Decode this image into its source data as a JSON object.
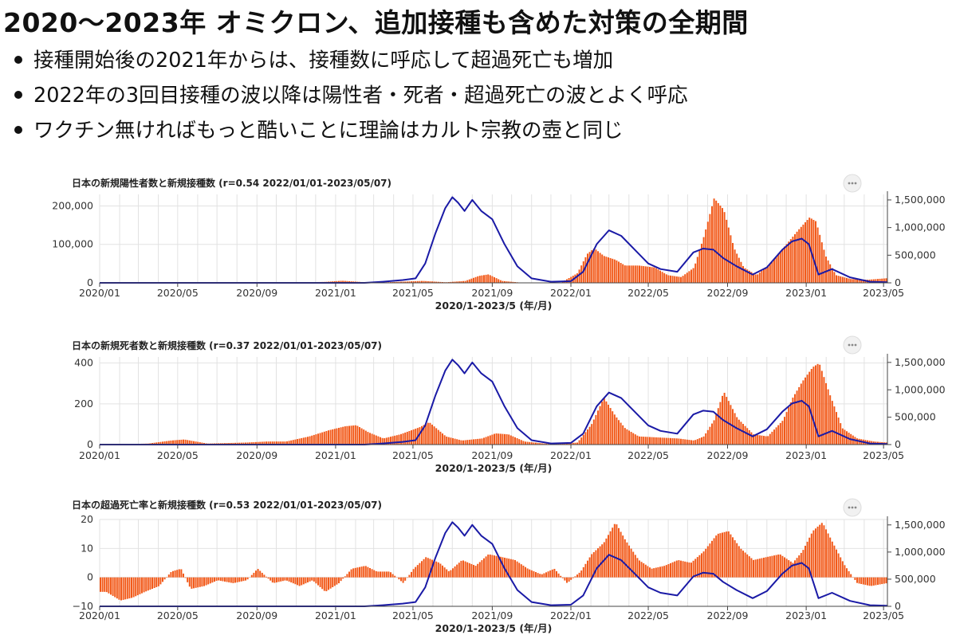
{
  "slide": {
    "title": "2020〜2023年 オミクロン、追加接種も含めた対策の全期間",
    "bullets": [
      "接種開始後の2021年からは、接種数に呼応して超過死亡も増加",
      "2022年の3回目接種の波以降は陽性者・死者・超過死亡の波とよく呼応",
      "ワクチン無ければもっと酷いことに理論はカルト宗教の壺と同じ"
    ]
  },
  "menu_icon": "ellipsis-icon",
  "colors": {
    "bars": "#f25a1a",
    "line": "#1a1aa6",
    "grid": "#e2e2e2",
    "axis": "#444444"
  },
  "chart_data": [
    {
      "type": "bar",
      "title": "日本の新規陽性者数と新規接種数 (r=0.54 2022/01/01-2023/05/07)",
      "xlabel": "2020/1-2023/5 (年/月)",
      "x_ticks": [
        "2020/01",
        "2020/05",
        "2020/09",
        "2021/01",
        "2021/05",
        "2021/09",
        "2022/01",
        "2022/05",
        "2022/09",
        "2023/01",
        "2023/05"
      ],
      "y_left": {
        "ticks": [
          0,
          100000,
          200000
        ],
        "tick_labels": [
          "0",
          "100,000",
          "200,000"
        ],
        "lim": [
          0,
          230000
        ]
      },
      "y_right": {
        "ticks": [
          0,
          500000,
          1000000,
          1500000
        ],
        "tick_labels": [
          "0",
          "500,000",
          "1,000,000",
          "1,500,000"
        ],
        "lim": [
          0,
          1600000
        ]
      },
      "series": [
        {
          "kind": "bar",
          "axis": "left",
          "x": [
            "2020/01/15",
            "2020/03/15",
            "2020/05/15",
            "2020/07/15",
            "2020/08/10",
            "2020/09/15",
            "2020/11/15",
            "2020/12/15",
            "2021/01/10",
            "2021/02/15",
            "2021/03/15",
            "2021/04/20",
            "2021/05/15",
            "2021/06/20",
            "2021/07/20",
            "2021/08/10",
            "2021/08/25",
            "2021/09/15",
            "2021/10/15",
            "2021/11/15",
            "2021/12/15",
            "2022/01/10",
            "2022/01/25",
            "2022/02/05",
            "2022/02/20",
            "2022/03/10",
            "2022/03/25",
            "2022/04/15",
            "2022/05/10",
            "2022/05/30",
            "2022/06/20",
            "2022/07/10",
            "2022/07/25",
            "2022/08/10",
            "2022/08/25",
            "2022/09/10",
            "2022/09/25",
            "2022/10/15",
            "2022/11/05",
            "2022/11/20",
            "2022/12/05",
            "2022/12/20",
            "2023/01/05",
            "2023/01/15",
            "2023/01/30",
            "2023/02/15",
            "2023/03/10",
            "2023/04/05",
            "2023/05/05"
          ],
          "values": [
            0,
            100,
            400,
            800,
            1200,
            600,
            1500,
            2500,
            5500,
            1500,
            1200,
            3500,
            5000,
            1500,
            5000,
            18000,
            22000,
            5000,
            500,
            200,
            300,
            25000,
            75000,
            90000,
            70000,
            60000,
            45000,
            45000,
            40000,
            20000,
            15000,
            40000,
            120000,
            220000,
            190000,
            90000,
            40000,
            20000,
            50000,
            80000,
            110000,
            140000,
            170000,
            160000,
            70000,
            20000,
            10000,
            8000,
            12000
          ]
        },
        {
          "kind": "line",
          "axis": "right",
          "x": [
            "2020/01/01",
            "2021/02/15",
            "2021/03/15",
            "2021/04/15",
            "2021/05/05",
            "2021/05/20",
            "2021/06/05",
            "2021/06/20",
            "2021/07/01",
            "2021/07/10",
            "2021/07/20",
            "2021/08/01",
            "2021/08/15",
            "2021/09/01",
            "2021/09/20",
            "2021/10/10",
            "2021/11/01",
            "2021/12/01",
            "2022/01/01",
            "2022/01/20",
            "2022/02/10",
            "2022/03/01",
            "2022/03/20",
            "2022/04/10",
            "2022/05/01",
            "2022/05/20",
            "2022/06/15",
            "2022/07/10",
            "2022/07/25",
            "2022/08/10",
            "2022/08/25",
            "2022/09/15",
            "2022/10/10",
            "2022/11/01",
            "2022/11/25",
            "2022/12/10",
            "2022/12/25",
            "2023/01/05",
            "2023/01/20",
            "2023/02/10",
            "2023/03/10",
            "2023/04/10",
            "2023/05/07"
          ],
          "values": [
            0,
            0,
            20000,
            50000,
            80000,
            350000,
            900000,
            1350000,
            1550000,
            1450000,
            1300000,
            1500000,
            1300000,
            1150000,
            700000,
            300000,
            80000,
            20000,
            30000,
            200000,
            700000,
            950000,
            850000,
            600000,
            350000,
            250000,
            200000,
            550000,
            620000,
            600000,
            450000,
            300000,
            150000,
            280000,
            600000,
            750000,
            800000,
            700000,
            150000,
            250000,
            100000,
            20000,
            10000
          ]
        }
      ]
    },
    {
      "type": "bar",
      "title": "日本の新規死者数と新規接種数 (r=0.37 2022/01/01-2023/05/07)",
      "xlabel": "2020/1-2023/5 (年/月)",
      "x_ticks": [
        "2020/01",
        "2020/05",
        "2020/09",
        "2021/01",
        "2021/05",
        "2021/09",
        "2022/01",
        "2022/05",
        "2022/09",
        "2023/01",
        "2023/05"
      ],
      "y_left": {
        "ticks": [
          0,
          200,
          400
        ],
        "tick_labels": [
          "0",
          "200",
          "400"
        ],
        "lim": [
          0,
          430
        ]
      },
      "y_right": {
        "ticks": [
          0,
          500000,
          1000000,
          1500000
        ],
        "tick_labels": [
          "0",
          "500,000",
          "1,000,000",
          "1,500,000"
        ],
        "lim": [
          0,
          1600000
        ]
      },
      "series": [
        {
          "kind": "bar",
          "axis": "left",
          "x": [
            "2020/01/15",
            "2020/03/15",
            "2020/04/20",
            "2020/05/10",
            "2020/06/15",
            "2020/08/15",
            "2020/09/15",
            "2020/10/15",
            "2020/11/20",
            "2020/12/20",
            "2021/01/15",
            "2021/02/01",
            "2021/02/20",
            "2021/03/15",
            "2021/04/10",
            "2021/05/10",
            "2021/05/25",
            "2021/06/20",
            "2021/07/15",
            "2021/08/15",
            "2021/09/05",
            "2021/09/25",
            "2021/10/20",
            "2021/11/20",
            "2021/12/20",
            "2022/01/10",
            "2022/02/01",
            "2022/02/20",
            "2022/03/10",
            "2022/03/25",
            "2022/04/15",
            "2022/05/15",
            "2022/06/15",
            "2022/07/10",
            "2022/07/25",
            "2022/08/10",
            "2022/08/25",
            "2022/09/15",
            "2022/10/10",
            "2022/11/01",
            "2022/11/25",
            "2022/12/10",
            "2022/12/25",
            "2023/01/10",
            "2023/01/20",
            "2023/02/05",
            "2023/02/25",
            "2023/03/20",
            "2023/04/15",
            "2023/05/05"
          ],
          "values": [
            0,
            5,
            20,
            25,
            5,
            10,
            15,
            15,
            40,
            70,
            90,
            95,
            60,
            30,
            50,
            85,
            110,
            40,
            20,
            30,
            55,
            50,
            15,
            5,
            5,
            10,
            100,
            230,
            140,
            80,
            40,
            35,
            30,
            20,
            40,
            120,
            260,
            130,
            50,
            40,
            120,
            230,
            310,
            380,
            400,
            250,
            80,
            30,
            15,
            10
          ]
        },
        {
          "kind": "line",
          "axis": "right",
          "x": [
            "2020/01/01",
            "2021/02/15",
            "2021/03/15",
            "2021/04/15",
            "2021/05/05",
            "2021/05/20",
            "2021/06/05",
            "2021/06/20",
            "2021/07/01",
            "2021/07/10",
            "2021/07/20",
            "2021/08/01",
            "2021/08/15",
            "2021/09/01",
            "2021/09/20",
            "2021/10/10",
            "2021/11/01",
            "2021/12/01",
            "2022/01/01",
            "2022/01/20",
            "2022/02/10",
            "2022/03/01",
            "2022/03/20",
            "2022/04/10",
            "2022/05/01",
            "2022/05/20",
            "2022/06/15",
            "2022/07/10",
            "2022/07/25",
            "2022/08/10",
            "2022/08/25",
            "2022/09/15",
            "2022/10/10",
            "2022/11/01",
            "2022/11/25",
            "2022/12/10",
            "2022/12/25",
            "2023/01/05",
            "2023/01/20",
            "2023/02/10",
            "2023/03/10",
            "2023/04/10",
            "2023/05/07"
          ],
          "values": [
            0,
            0,
            20000,
            50000,
            80000,
            350000,
            900000,
            1350000,
            1550000,
            1450000,
            1300000,
            1500000,
            1300000,
            1150000,
            700000,
            300000,
            80000,
            20000,
            30000,
            200000,
            700000,
            950000,
            850000,
            600000,
            350000,
            250000,
            200000,
            550000,
            620000,
            600000,
            450000,
            300000,
            150000,
            280000,
            600000,
            750000,
            800000,
            700000,
            150000,
            250000,
            100000,
            20000,
            10000
          ]
        }
      ]
    },
    {
      "type": "bar",
      "title": "日本の超過死亡率と新規接種数 (r=0.53 2022/01/01-2023/05/07)",
      "xlabel": "2020/1-2023/5 (年/月)",
      "x_ticks": [
        "2020/01",
        "2020/05",
        "2020/09",
        "2021/01",
        "2021/05",
        "2021/09",
        "2022/01",
        "2022/05",
        "2022/09",
        "2023/01",
        "2023/05"
      ],
      "y_left": {
        "ticks": [
          -10,
          0,
          10,
          20
        ],
        "tick_labels": [
          "−10",
          "0",
          "10",
          "20"
        ],
        "lim": [
          -10,
          20
        ]
      },
      "y_right": {
        "ticks": [
          0,
          500000,
          1000000,
          1500000
        ],
        "tick_labels": [
          "0",
          "500,000",
          "1,000,000",
          "1,500,000"
        ],
        "lim": [
          0,
          1600000
        ]
      },
      "series": [
        {
          "kind": "bar",
          "axis": "left",
          "x": [
            "2020/01/10",
            "2020/02/01",
            "2020/02/20",
            "2020/03/10",
            "2020/04/01",
            "2020/04/20",
            "2020/05/05",
            "2020/05/20",
            "2020/06/10",
            "2020/07/01",
            "2020/07/25",
            "2020/08/15",
            "2020/09/01",
            "2020/09/25",
            "2020/10/15",
            "2020/11/05",
            "2020/11/25",
            "2020/12/15",
            "2021/01/05",
            "2021/01/25",
            "2021/02/15",
            "2021/03/05",
            "2021/03/25",
            "2021/04/15",
            "2021/05/01",
            "2021/05/20",
            "2021/06/10",
            "2021/06/25",
            "2021/07/15",
            "2021/08/05",
            "2021/08/25",
            "2021/09/15",
            "2021/10/05",
            "2021/10/25",
            "2021/11/15",
            "2021/12/05",
            "2021/12/25",
            "2022/01/15",
            "2022/02/01",
            "2022/02/20",
            "2022/03/10",
            "2022/03/25",
            "2022/04/15",
            "2022/05/05",
            "2022/05/25",
            "2022/06/15",
            "2022/07/05",
            "2022/07/25",
            "2022/08/15",
            "2022/09/01",
            "2022/09/20",
            "2022/10/10",
            "2022/10/30",
            "2022/11/20",
            "2022/12/10",
            "2022/12/25",
            "2023/01/10",
            "2023/01/25",
            "2023/02/10",
            "2023/03/01",
            "2023/03/20",
            "2023/04/10",
            "2023/05/05"
          ],
          "values": [
            -5,
            -8,
            -7,
            -5,
            -3,
            2,
            3,
            -4,
            -3,
            -1,
            -2,
            -1,
            3,
            -2,
            -1,
            -3,
            -1,
            -5,
            -2,
            3,
            4,
            2,
            2,
            -2,
            3,
            7,
            5,
            2,
            6,
            4,
            8,
            7,
            6,
            3,
            1,
            3,
            -2,
            2,
            8,
            12,
            19,
            13,
            6,
            3,
            4,
            6,
            5,
            9,
            15,
            16,
            10,
            6,
            7,
            8,
            5,
            9,
            16,
            19,
            12,
            4,
            -2,
            -3,
            -2
          ]
        },
        {
          "kind": "line",
          "axis": "right",
          "x": [
            "2020/01/01",
            "2021/02/15",
            "2021/03/15",
            "2021/04/15",
            "2021/05/05",
            "2021/05/20",
            "2021/06/05",
            "2021/06/20",
            "2021/07/01",
            "2021/07/10",
            "2021/07/20",
            "2021/08/01",
            "2021/08/15",
            "2021/09/01",
            "2021/09/20",
            "2021/10/10",
            "2021/11/01",
            "2021/12/01",
            "2022/01/01",
            "2022/01/20",
            "2022/02/10",
            "2022/03/01",
            "2022/03/20",
            "2022/04/10",
            "2022/05/01",
            "2022/05/20",
            "2022/06/15",
            "2022/07/10",
            "2022/07/25",
            "2022/08/10",
            "2022/08/25",
            "2022/09/15",
            "2022/10/10",
            "2022/11/01",
            "2022/11/25",
            "2022/12/10",
            "2022/12/25",
            "2023/01/05",
            "2023/01/20",
            "2023/02/10",
            "2023/03/10",
            "2023/04/10",
            "2023/05/07"
          ],
          "values": [
            0,
            0,
            20000,
            50000,
            80000,
            350000,
            900000,
            1350000,
            1550000,
            1450000,
            1300000,
            1500000,
            1300000,
            1150000,
            700000,
            300000,
            80000,
            20000,
            30000,
            200000,
            700000,
            950000,
            850000,
            600000,
            350000,
            250000,
            200000,
            550000,
            620000,
            600000,
            450000,
            300000,
            150000,
            280000,
            600000,
            750000,
            800000,
            700000,
            150000,
            250000,
            100000,
            20000,
            10000
          ]
        }
      ]
    }
  ]
}
